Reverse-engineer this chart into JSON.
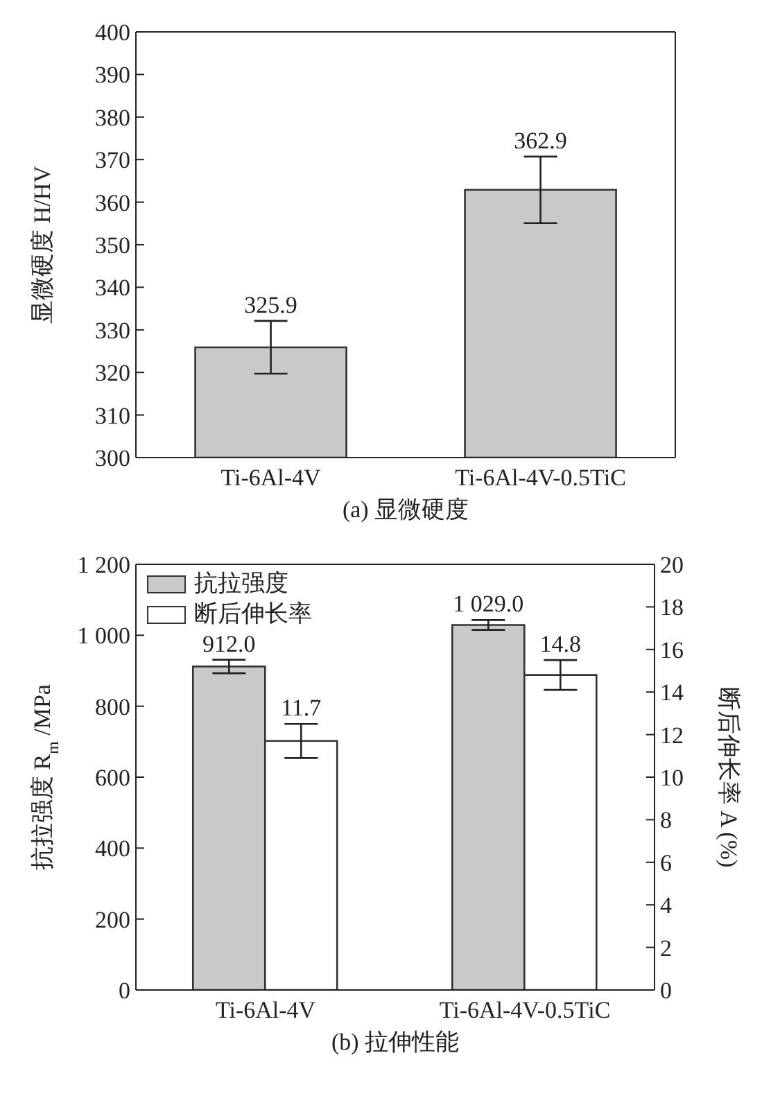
{
  "chart_data": [
    {
      "type": "bar",
      "categories": [
        "Ti-6Al-4V",
        "Ti-6Al-4V-0.5TiC"
      ],
      "ylabel": "显微硬度 H/HV",
      "annotations": [
        "(a) 显微硬度"
      ],
      "series": [
        {
          "color": "#c8c9cb",
          "values": [
            325.9,
            362.9
          ],
          "errors": [
            6.2,
            7.8
          ],
          "value_labels": [
            "325.9",
            "362.9"
          ]
        }
      ],
      "ylim": [
        300,
        400
      ],
      "yticks": [
        300,
        310,
        320,
        330,
        340,
        350,
        360,
        370,
        380,
        390,
        400
      ],
      "grid": false,
      "legend": false
    },
    {
      "type": "bar",
      "categories": [
        "Ti-6Al-4V",
        "Ti-6Al-4V-0.5TiC"
      ],
      "ylabel": "抗拉强度 R$_{m}$ /MPa",
      "y2label": "断后伸长率 A (%)",
      "annotations": [
        "(b) 拉伸性能"
      ],
      "series": [
        {
          "name": "抗拉强度",
          "color": "#c8c9cb",
          "values": [
            912.0,
            1029.0
          ],
          "errors": [
            19,
            14
          ],
          "value_labels": [
            "912.0",
            "1 029.0"
          ]
        },
        {
          "name": "断后伸长率",
          "color": "#ffffff",
          "axis": "y2",
          "values": [
            11.7,
            14.8
          ],
          "errors": [
            0.8,
            0.7
          ],
          "value_labels": [
            "11.7",
            "14.8"
          ]
        }
      ],
      "ylim": [
        0,
        1200
      ],
      "yticks": [
        0,
        200,
        400,
        600,
        800,
        {
          "value": 1000,
          "label": "1 000"
        },
        {
          "value": 1200,
          "label": "1 200"
        }
      ],
      "y2lim": [
        0,
        20
      ],
      "y2ticks": [
        0,
        2,
        4,
        6,
        8,
        10,
        12,
        14,
        16,
        18,
        20
      ],
      "grid": false,
      "legend": "top left"
    }
  ]
}
